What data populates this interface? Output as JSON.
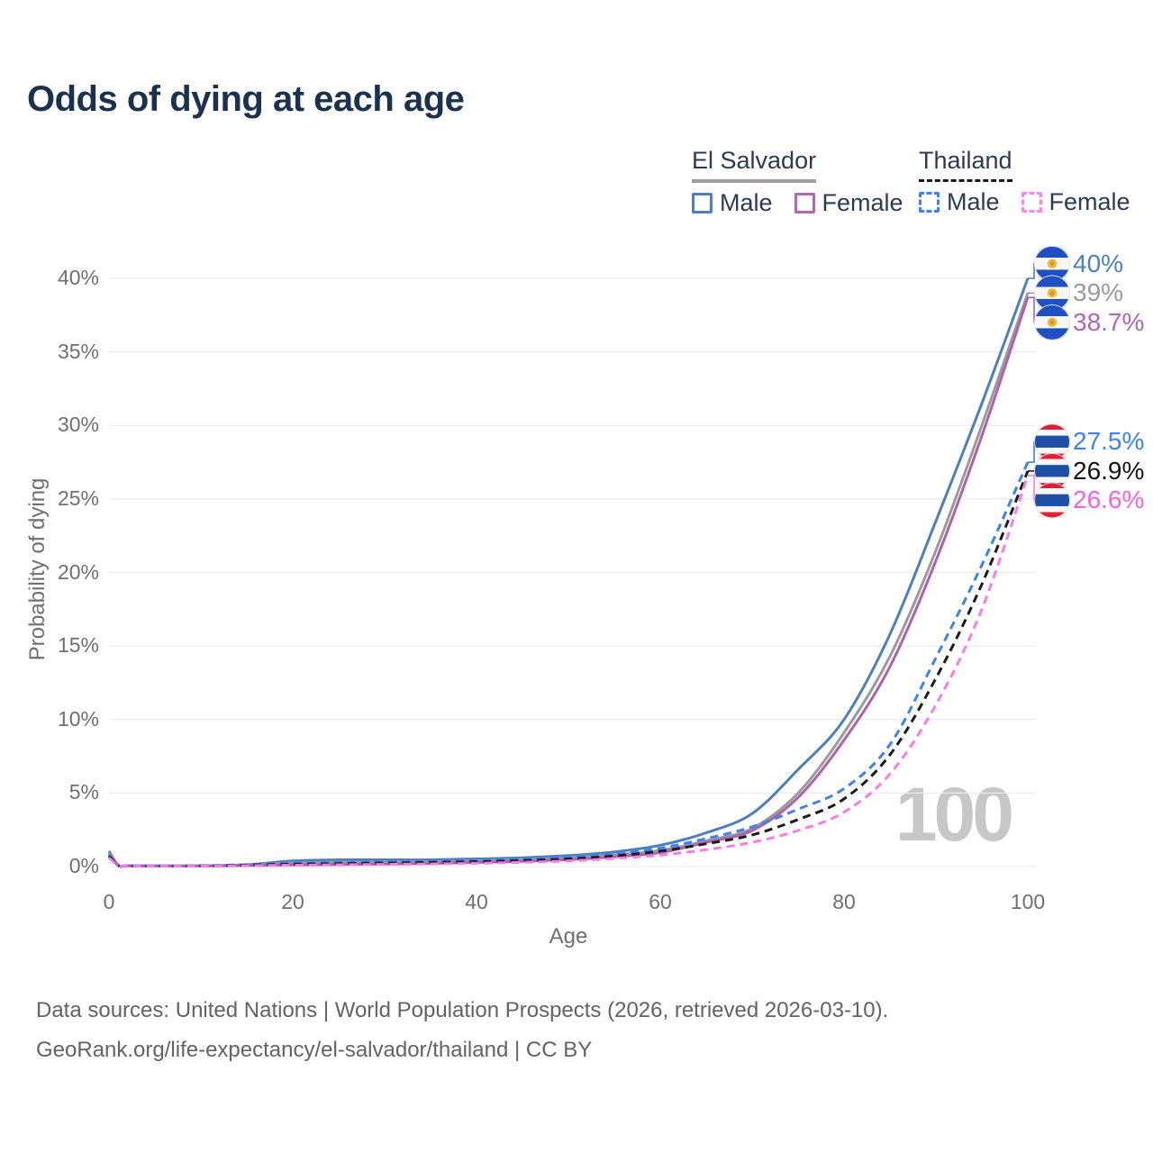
{
  "title": "Odds of dying at each age",
  "legend": {
    "groups": [
      {
        "id": "el-salvador",
        "header": "El Salvador",
        "line_style": "solid",
        "line_color": "#9e9e9e",
        "items": [
          {
            "id": "el-salvador-male",
            "label": "Male",
            "color": "#4d7fbe",
            "dashed": false
          },
          {
            "id": "el-salvador-female",
            "label": "Female",
            "color": "#b468b4",
            "dashed": false
          }
        ]
      },
      {
        "id": "thailand",
        "header": "Thailand",
        "line_style": "dashed",
        "line_color": "#1a1a1a",
        "items": [
          {
            "id": "thailand-male",
            "label": "Male",
            "color": "#3b82f4",
            "dashed": true
          },
          {
            "id": "thailand-female",
            "label": "Female",
            "color": "#ff85f2",
            "dashed": true
          }
        ]
      }
    ]
  },
  "chart_data": {
    "type": "line",
    "title": "Odds of dying at each age",
    "xlabel": "Age",
    "ylabel": "Probability of dying",
    "xlim": [
      0,
      100
    ],
    "ylim": [
      0,
      40
    ],
    "x_ticks": [
      0,
      20,
      40,
      60,
      80,
      100
    ],
    "y_ticks": [
      0,
      5,
      10,
      15,
      20,
      25,
      30,
      35,
      40
    ],
    "y_tick_suffix": "%",
    "grid": "horizontal",
    "age_watermark": "100",
    "ages": [
      0,
      1,
      2,
      5,
      10,
      15,
      20,
      25,
      30,
      35,
      40,
      45,
      50,
      55,
      60,
      65,
      70,
      75,
      80,
      85,
      90,
      95,
      100
    ],
    "series": [
      {
        "id": "el-salvador-male",
        "name": "El Salvador Male",
        "color": "#4d7fbe",
        "dashed": false,
        "flag": "el_salvador",
        "end_label": "40%",
        "label_color": "#4d7fbe",
        "values": [
          1.05,
          0.1,
          0.06,
          0.05,
          0.05,
          0.12,
          0.38,
          0.46,
          0.46,
          0.46,
          0.52,
          0.6,
          0.75,
          1.0,
          1.45,
          2.3,
          3.6,
          6.6,
          10.0,
          15.8,
          23.5,
          31.5,
          40.0
        ]
      },
      {
        "id": "el-salvador-both",
        "name": "El Salvador",
        "color": "#9a9a9a",
        "dashed": false,
        "flag": "el_salvador",
        "end_label": "39%",
        "label_color": "#9a9a9a",
        "values": [
          0.95,
          0.09,
          0.05,
          0.04,
          0.04,
          0.09,
          0.24,
          0.3,
          0.31,
          0.33,
          0.4,
          0.47,
          0.6,
          0.8,
          1.1,
          1.75,
          2.6,
          5.0,
          9.1,
          14.3,
          21.5,
          30.0,
          39.0
        ]
      },
      {
        "id": "el-salvador-female",
        "name": "El Salvador Female",
        "color": "#ad62ae",
        "dashed": false,
        "flag": "el_salvador",
        "end_label": "38.7%",
        "label_color": "#b065b5",
        "values": [
          0.85,
          0.08,
          0.05,
          0.04,
          0.04,
          0.07,
          0.11,
          0.14,
          0.17,
          0.21,
          0.28,
          0.36,
          0.48,
          0.66,
          0.95,
          1.65,
          2.45,
          4.7,
          8.6,
          13.6,
          20.8,
          29.3,
          38.7
        ]
      },
      {
        "id": "thailand-male",
        "name": "Thailand Male",
        "color": "#3b82f4",
        "dashed": true,
        "flag": "thailand",
        "end_label": "27.5%",
        "label_color": "#3b82f4",
        "values": [
          0.8,
          0.08,
          0.05,
          0.04,
          0.05,
          0.13,
          0.22,
          0.27,
          0.32,
          0.37,
          0.44,
          0.52,
          0.62,
          0.85,
          1.25,
          1.9,
          2.7,
          3.9,
          5.3,
          8.3,
          14.2,
          20.5,
          27.5
        ]
      },
      {
        "id": "thailand-both",
        "name": "Thailand",
        "color": "#1c1c1c",
        "dashed": true,
        "flag": "thailand",
        "end_label": "26.9%",
        "label_color": "#141414",
        "values": [
          0.7,
          0.07,
          0.04,
          0.03,
          0.04,
          0.1,
          0.16,
          0.2,
          0.24,
          0.28,
          0.33,
          0.41,
          0.52,
          0.72,
          1.05,
          1.55,
          2.15,
          3.2,
          4.6,
          7.6,
          12.8,
          19.2,
          26.9
        ]
      },
      {
        "id": "thailand-female",
        "name": "Thailand Female",
        "color": "#fb7bee",
        "dashed": true,
        "flag": "thailand",
        "end_label": "26.6%",
        "label_color": "#ff5fd8",
        "values": [
          0.6,
          0.06,
          0.04,
          0.03,
          0.03,
          0.06,
          0.09,
          0.12,
          0.15,
          0.18,
          0.22,
          0.29,
          0.38,
          0.55,
          0.78,
          1.15,
          1.65,
          2.45,
          3.7,
          6.3,
          11.0,
          17.5,
          26.6
        ]
      }
    ],
    "flag_colors": {
      "el_salvador": {
        "blue": "#1e50c2",
        "white": "#f7f7f7",
        "emblem": "#f0b833",
        "emblem_inner": "#cf9a1f"
      },
      "thailand": {
        "red": "#dd2033",
        "white": "#f7f7f7",
        "blue": "#1f4fa5"
      }
    }
  },
  "footer": {
    "line1": "Data sources: United Nations | World Population Prospects (2026, retrieved 2026-03-10).",
    "line2": "GeoRank.org/life-expectancy/el-salvador/thailand | CC BY"
  }
}
